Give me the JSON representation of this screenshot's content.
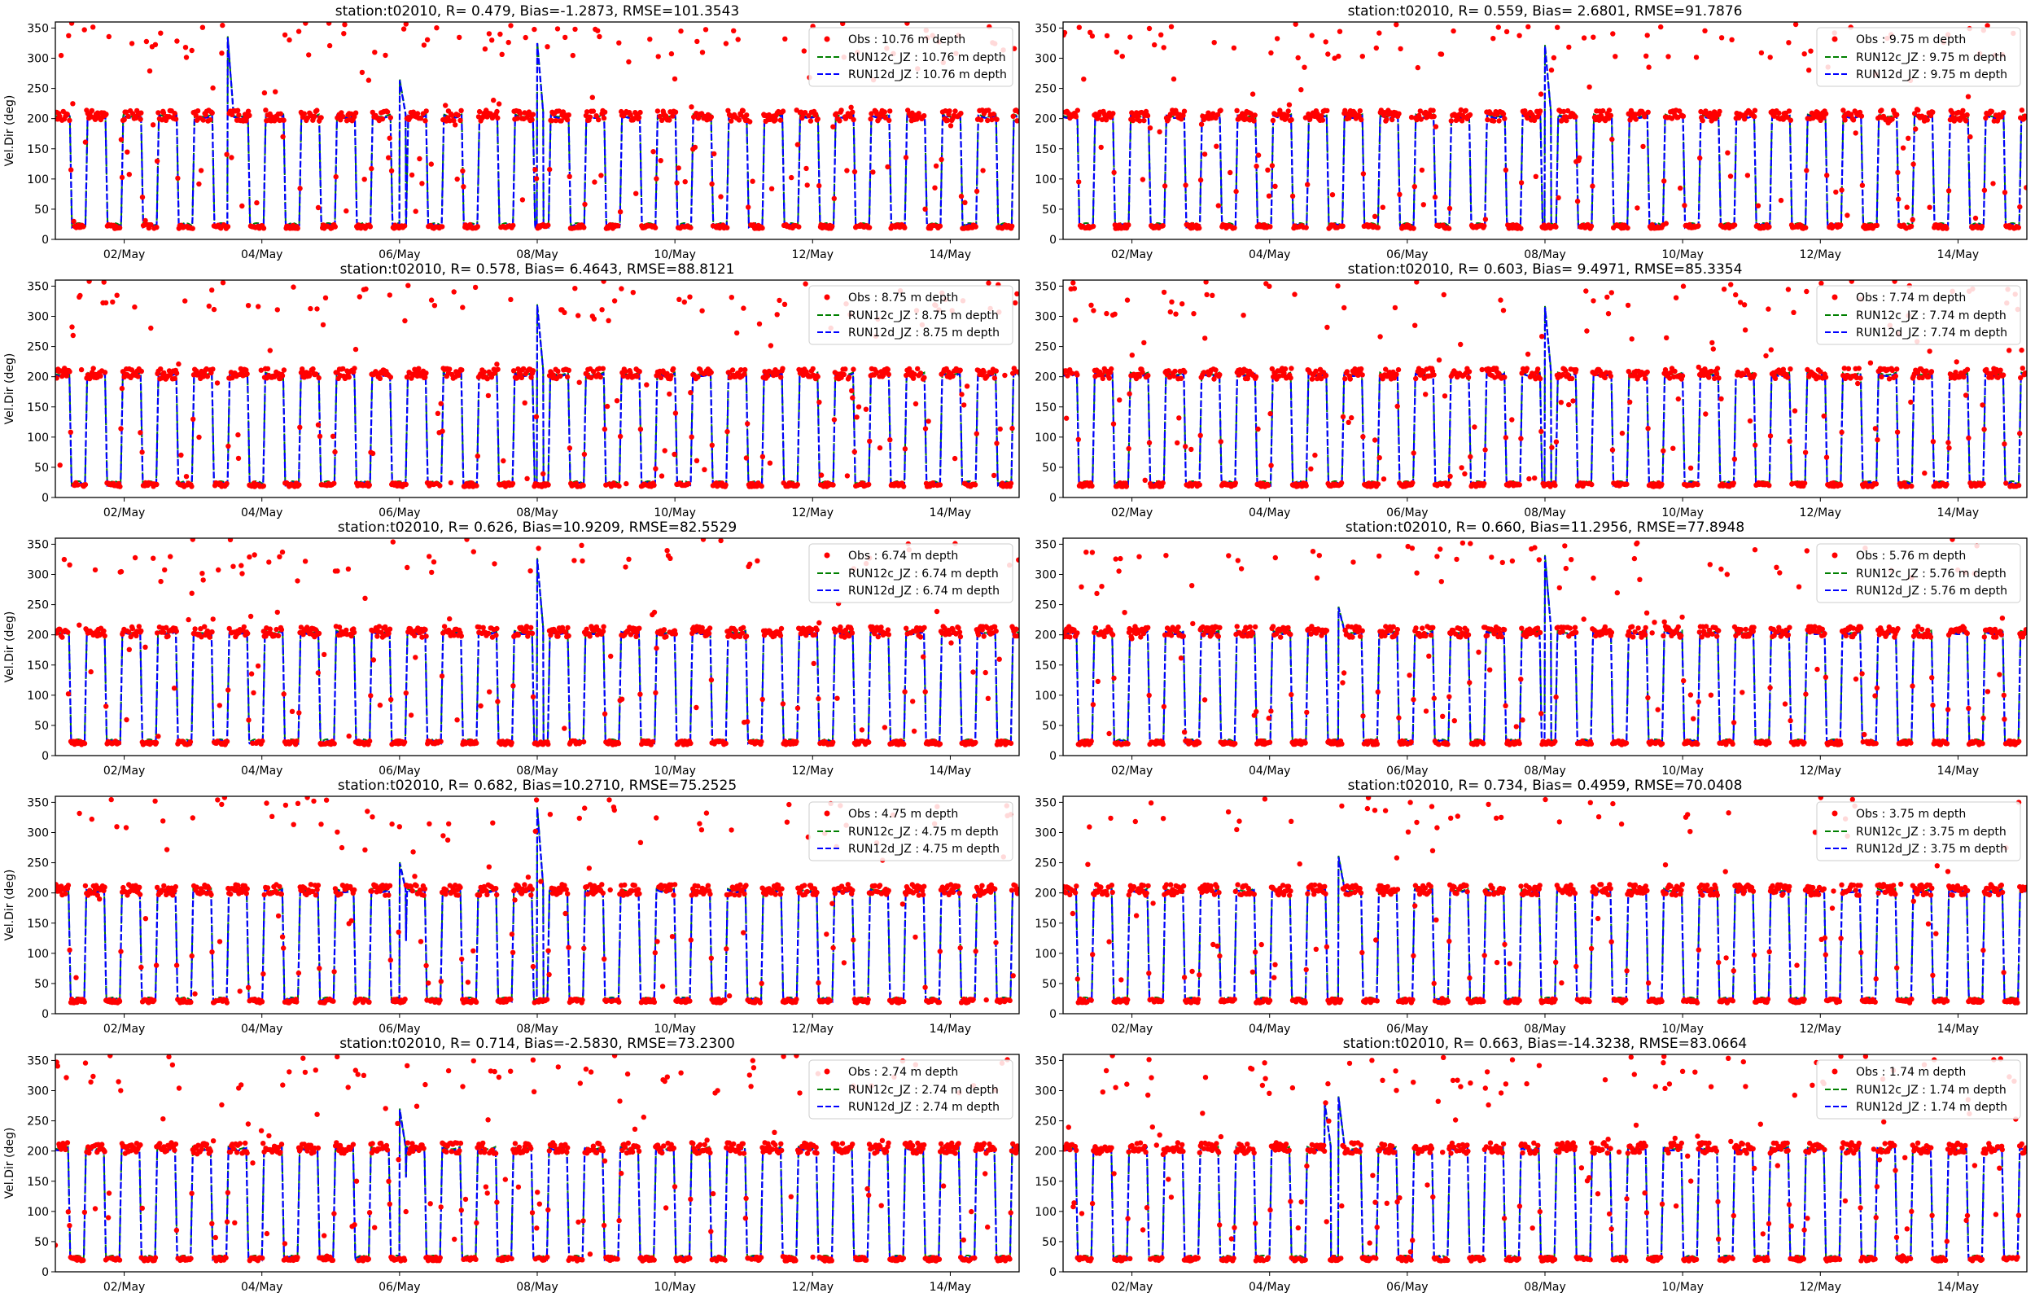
{
  "chart_data": [
    {
      "type": "line",
      "title": "station:t02010, R= 0.479, Bias=-1.2873, RMSE=101.3543",
      "ylabel": "Vel.Dir (deg)",
      "xlabel": "",
      "ylim": [
        0,
        360
      ],
      "yticks": [
        0,
        50,
        100,
        150,
        200,
        250,
        300,
        350
      ],
      "xticks": [
        "02/May",
        "04/May",
        "06/May",
        "08/May",
        "10/May",
        "12/May",
        "14/May"
      ],
      "legend": [
        "Obs : 10.76 m depth",
        "RUN12c_JZ : 10.76 m depth",
        "RUN12d_JZ : 10.76 m depth"
      ],
      "legend_loc": "upper right",
      "series_colors": [
        "#ff0000",
        "#008000",
        "#0000ff"
      ],
      "scatter_fraction": 0.2,
      "spikes": [
        [
          2.5,
          340
        ],
        [
          5.0,
          265
        ],
        [
          7.0,
          325
        ]
      ]
    },
    {
      "type": "line",
      "title": "station:t02010, R= 0.559, Bias= 2.6801, RMSE=91.7876",
      "ylabel": "",
      "xlabel": "",
      "ylim": [
        0,
        360
      ],
      "yticks": [
        0,
        50,
        100,
        150,
        200,
        250,
        300,
        350
      ],
      "xticks": [
        "02/May",
        "04/May",
        "06/May",
        "08/May",
        "10/May",
        "12/May",
        "14/May"
      ],
      "legend": [
        "Obs : 9.75 m depth",
        "RUN12c_JZ : 9.75 m depth",
        "RUN12d_JZ : 9.75 m depth"
      ],
      "legend_loc": "upper right",
      "series_colors": [
        "#ff0000",
        "#008000",
        "#0000ff"
      ],
      "scatter_fraction": 0.18,
      "spikes": [
        [
          7.0,
          320
        ]
      ]
    },
    {
      "type": "line",
      "title": "station:t02010, R= 0.578, Bias= 6.4643, RMSE=88.8121",
      "ylabel": "Vel.Dir (deg)",
      "xlabel": "",
      "ylim": [
        0,
        360
      ],
      "yticks": [
        0,
        50,
        100,
        150,
        200,
        250,
        300,
        350
      ],
      "xticks": [
        "02/May",
        "04/May",
        "06/May",
        "08/May",
        "10/May",
        "12/May",
        "14/May"
      ],
      "legend": [
        "Obs : 8.75 m depth",
        "RUN12c_JZ : 8.75 m depth",
        "RUN12d_JZ : 8.75 m depth"
      ],
      "legend_loc": "upper right",
      "series_colors": [
        "#ff0000",
        "#008000",
        "#0000ff"
      ],
      "scatter_fraction": 0.16,
      "spikes": [
        [
          7.0,
          318
        ]
      ]
    },
    {
      "type": "line",
      "title": "station:t02010, R= 0.603, Bias= 9.4971, RMSE=85.3354",
      "ylabel": "",
      "xlabel": "",
      "ylim": [
        0,
        360
      ],
      "yticks": [
        0,
        50,
        100,
        150,
        200,
        250,
        300,
        350
      ],
      "xticks": [
        "02/May",
        "04/May",
        "06/May",
        "08/May",
        "10/May",
        "12/May",
        "14/May"
      ],
      "legend": [
        "Obs : 7.74 m depth",
        "RUN12c_JZ : 7.74 m depth",
        "RUN12d_JZ : 7.74 m depth"
      ],
      "legend_loc": "upper right",
      "series_colors": [
        "#ff0000",
        "#008000",
        "#0000ff"
      ],
      "scatter_fraction": 0.15,
      "spikes": [
        [
          7.0,
          315
        ]
      ]
    },
    {
      "type": "line",
      "title": "station:t02010, R= 0.626, Bias=10.9209, RMSE=82.5529",
      "ylabel": "Vel.Dir (deg)",
      "xlabel": "",
      "ylim": [
        0,
        360
      ],
      "yticks": [
        0,
        50,
        100,
        150,
        200,
        250,
        300,
        350
      ],
      "xticks": [
        "02/May",
        "04/May",
        "06/May",
        "08/May",
        "10/May",
        "12/May",
        "14/May"
      ],
      "legend": [
        "Obs : 6.74 m depth",
        "RUN12c_JZ : 6.74 m depth",
        "RUN12d_JZ : 6.74 m depth"
      ],
      "legend_loc": "upper right",
      "series_colors": [
        "#ff0000",
        "#008000",
        "#0000ff"
      ],
      "scatter_fraction": 0.14,
      "spikes": [
        [
          7.0,
          325
        ]
      ]
    },
    {
      "type": "line",
      "title": "station:t02010, R= 0.660, Bias=11.2956, RMSE=77.8948",
      "ylabel": "",
      "xlabel": "",
      "ylim": [
        0,
        360
      ],
      "yticks": [
        0,
        50,
        100,
        150,
        200,
        250,
        300,
        350
      ],
      "xticks": [
        "02/May",
        "04/May",
        "06/May",
        "08/May",
        "10/May",
        "12/May",
        "14/May"
      ],
      "legend": [
        "Obs : 5.76 m depth",
        "RUN12c_JZ : 5.76 m depth",
        "RUN12d_JZ : 5.76 m depth"
      ],
      "legend_loc": "upper right",
      "series_colors": [
        "#ff0000",
        "#008000",
        "#0000ff"
      ],
      "scatter_fraction": 0.13,
      "spikes": [
        [
          7.0,
          330
        ],
        [
          4.0,
          245
        ]
      ]
    },
    {
      "type": "line",
      "title": "station:t02010, R= 0.682, Bias=10.2710, RMSE=75.2525",
      "ylabel": "Vel.Dir (deg)",
      "xlabel": "",
      "ylim": [
        0,
        360
      ],
      "yticks": [
        0,
        50,
        100,
        150,
        200,
        250,
        300,
        350
      ],
      "xticks": [
        "02/May",
        "04/May",
        "06/May",
        "08/May",
        "10/May",
        "12/May",
        "14/May"
      ],
      "legend": [
        "Obs : 4.75 m depth",
        "RUN12c_JZ : 4.75 m depth",
        "RUN12d_JZ : 4.75 m depth"
      ],
      "legend_loc": "upper right",
      "series_colors": [
        "#ff0000",
        "#008000",
        "#0000ff"
      ],
      "scatter_fraction": 0.13,
      "spikes": [
        [
          7.0,
          340
        ],
        [
          5.0,
          250
        ]
      ]
    },
    {
      "type": "line",
      "title": "station:t02010, R= 0.734, Bias= 0.4959, RMSE=70.0408",
      "ylabel": "",
      "xlabel": "",
      "ylim": [
        0,
        360
      ],
      "yticks": [
        0,
        50,
        100,
        150,
        200,
        250,
        300,
        350
      ],
      "xticks": [
        "02/May",
        "04/May",
        "06/May",
        "08/May",
        "10/May",
        "12/May",
        "14/May"
      ],
      "legend": [
        "Obs : 3.75 m depth",
        "RUN12c_JZ : 3.75 m depth",
        "RUN12d_JZ : 3.75 m depth"
      ],
      "legend_loc": "upper right",
      "series_colors": [
        "#ff0000",
        "#008000",
        "#0000ff"
      ],
      "scatter_fraction": 0.12,
      "spikes": [
        [
          4.0,
          260
        ]
      ]
    },
    {
      "type": "line",
      "title": "station:t02010, R= 0.714, Bias=-2.5830, RMSE=73.2300",
      "ylabel": "Vel.Dir (deg)",
      "xlabel": "",
      "ylim": [
        0,
        360
      ],
      "yticks": [
        0,
        50,
        100,
        150,
        200,
        250,
        300,
        350
      ],
      "xticks": [
        "02/May",
        "04/May",
        "06/May",
        "08/May",
        "10/May",
        "12/May",
        "14/May"
      ],
      "legend": [
        "Obs : 2.74 m depth",
        "RUN12c_JZ : 2.74 m depth",
        "RUN12d_JZ : 2.74 m depth"
      ],
      "legend_loc": "upper right",
      "series_colors": [
        "#ff0000",
        "#008000",
        "#0000ff"
      ],
      "scatter_fraction": 0.14,
      "spikes": [
        [
          5.0,
          270
        ]
      ]
    },
    {
      "type": "line",
      "title": "station:t02010, R= 0.663, Bias=-14.3238, RMSE=83.0664",
      "ylabel": "",
      "xlabel": "",
      "ylim": [
        0,
        360
      ],
      "yticks": [
        0,
        50,
        100,
        150,
        200,
        250,
        300,
        350
      ],
      "xticks": [
        "02/May",
        "04/May",
        "06/May",
        "08/May",
        "10/May",
        "12/May",
        "14/May"
      ],
      "legend": [
        "Obs : 1.74 m depth",
        "RUN12c_JZ : 1.74 m depth",
        "RUN12d_JZ : 1.74 m depth"
      ],
      "legend_loc": "upper right",
      "series_colors": [
        "#ff0000",
        "#008000",
        "#0000ff"
      ],
      "scatter_fraction": 0.16,
      "spikes": [
        [
          3.8,
          280
        ],
        [
          4.0,
          290
        ]
      ]
    }
  ]
}
